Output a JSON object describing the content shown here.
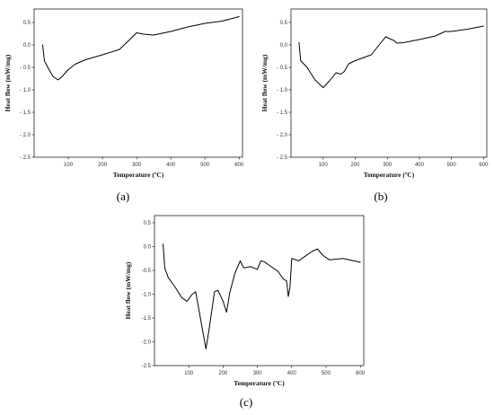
{
  "chart_data": [
    {
      "type": "line",
      "panel_label": "(a)",
      "xlabel": "Temperature (ºC)",
      "ylabel": "Heat flow (mW/mg)",
      "xlim": [
        0,
        610
      ],
      "ylim": [
        -2.5,
        0.8
      ],
      "xticks": [
        100,
        200,
        300,
        400,
        500,
        600
      ],
      "xtick_labels": [
        "100",
        "200",
        "300",
        "400",
        "500",
        "600"
      ],
      "yticks": [
        0.5,
        0.0,
        -0.5,
        -1.0,
        -1.5,
        -2.0,
        -2.5
      ],
      "ytick_labels": [
        "0.5",
        "0.0",
        "- 0.5",
        "- 1.0",
        "- 1.5",
        "- 2.0",
        "- 2.5"
      ],
      "grid": false,
      "series": [
        {
          "x": [
            25,
            30,
            40,
            55,
            70,
            80,
            100,
            120,
            150,
            200,
            250,
            280,
            300,
            320,
            350,
            400,
            450,
            500,
            550,
            600
          ],
          "y": [
            0.0,
            -0.35,
            -0.5,
            -0.7,
            -0.78,
            -0.72,
            -0.55,
            -0.43,
            -0.33,
            -0.22,
            -0.1,
            0.12,
            0.27,
            0.24,
            0.22,
            0.3,
            0.4,
            0.48,
            0.53,
            0.63
          ]
        }
      ]
    },
    {
      "type": "line",
      "panel_label": "(b)",
      "xlabel": "Temperature (ºC)",
      "ylabel": "Heat flow (mW/mg)",
      "xlim": [
        0,
        610
      ],
      "ylim": [
        -2.5,
        0.8
      ],
      "xticks": [
        100,
        200,
        300,
        400,
        500,
        600
      ],
      "xtick_labels": [
        "100",
        "200",
        "300",
        "400",
        "500",
        "600"
      ],
      "yticks": [
        0.5,
        0.0,
        -0.5,
        -1.0,
        -1.5,
        -2.0,
        -2.5
      ],
      "ytick_labels": [
        "0.5",
        "0.0",
        "- 0.5",
        "- 1.0",
        "- 1.5",
        "- 2.0",
        "- 2.5"
      ],
      "grid": false,
      "series": [
        {
          "x": [
            25,
            30,
            50,
            75,
            100,
            120,
            140,
            155,
            165,
            180,
            200,
            250,
            280,
            295,
            310,
            320,
            330,
            350,
            400,
            450,
            480,
            500,
            550,
            600
          ],
          "y": [
            0.05,
            -0.35,
            -0.5,
            -0.78,
            -0.95,
            -0.8,
            -0.62,
            -0.65,
            -0.6,
            -0.42,
            -0.35,
            -0.22,
            0.05,
            0.18,
            0.13,
            0.1,
            0.04,
            0.05,
            0.12,
            0.2,
            0.3,
            0.3,
            0.35,
            0.42
          ]
        }
      ]
    },
    {
      "type": "line",
      "panel_label": "(c)",
      "xlabel": "Temperature (ºC)",
      "ylabel": "Heat flow (mW/mg)",
      "xlim": [
        0,
        610
      ],
      "ylim": [
        -2.5,
        0.65
      ],
      "xticks": [
        100,
        200,
        300,
        400,
        500,
        600
      ],
      "xtick_labels": [
        "100",
        "200",
        "300",
        "400",
        "500",
        "600"
      ],
      "yticks": [
        0.5,
        0.0,
        -0.5,
        -1.0,
        -1.5,
        -2.0,
        -2.5
      ],
      "ytick_labels": [
        "0.5",
        "0.0",
        "-0.5",
        "-1.0",
        "-1.5",
        "-2.0",
        "-2.5"
      ],
      "grid": false,
      "series": [
        {
          "x": [
            25,
            30,
            40,
            60,
            80,
            95,
            110,
            120,
            135,
            150,
            160,
            175,
            185,
            200,
            210,
            220,
            235,
            250,
            260,
            280,
            300,
            310,
            320,
            340,
            360,
            375,
            385,
            390,
            395,
            400,
            420,
            440,
            460,
            475,
            490,
            510,
            550,
            600
          ],
          "y": [
            0.05,
            -0.45,
            -0.65,
            -0.85,
            -1.08,
            -1.15,
            -1.0,
            -0.95,
            -1.55,
            -2.15,
            -1.7,
            -0.95,
            -0.92,
            -1.15,
            -1.38,
            -0.95,
            -0.55,
            -0.3,
            -0.45,
            -0.42,
            -0.48,
            -0.3,
            -0.32,
            -0.42,
            -0.52,
            -0.68,
            -0.72,
            -1.05,
            -0.85,
            -0.25,
            -0.3,
            -0.2,
            -0.1,
            -0.05,
            -0.18,
            -0.28,
            -0.25,
            -0.33
          ]
        }
      ]
    }
  ]
}
